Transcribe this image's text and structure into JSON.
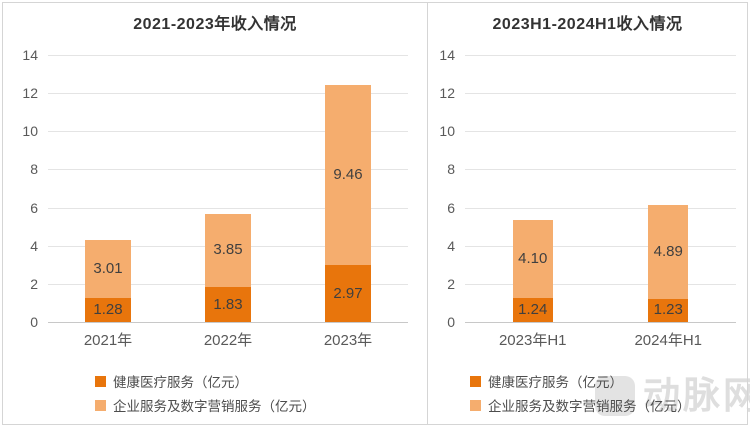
{
  "chart_data": [
    {
      "type": "bar",
      "stacked": true,
      "title": "2021-2023年收入情况",
      "categories": [
        "2021年",
        "2022年",
        "2023年"
      ],
      "series": [
        {
          "name": "健康医疗服务（亿元）",
          "color": "#E8750C",
          "values": [
            1.28,
            1.83,
            2.97
          ],
          "value_labels": [
            "1.28",
            "1.83",
            "2.97"
          ]
        },
        {
          "name": "企业服务及数字营销服务（亿元）",
          "color": "#F5AD6E",
          "values": [
            3.01,
            3.85,
            9.46
          ],
          "value_labels": [
            "3.01",
            "3.85",
            "9.46"
          ]
        }
      ],
      "ylim": [
        0,
        14
      ],
      "ytick_step": 2,
      "grid": true,
      "legend_position": "bottom-left"
    },
    {
      "type": "bar",
      "stacked": true,
      "title": "2023H1-2024H1收入情况",
      "categories": [
        "2023年H1",
        "2024年H1"
      ],
      "series": [
        {
          "name": "健康医疗服务（亿元）",
          "color": "#E8750C",
          "values": [
            1.24,
            1.23
          ],
          "value_labels": [
            "1.24",
            "1.23"
          ]
        },
        {
          "name": "企业服务及数字营销服务（亿元）",
          "color": "#F5AD6E",
          "values": [
            4.1,
            4.89
          ],
          "value_labels": [
            "4.10",
            "4.89"
          ]
        }
      ],
      "ylim": [
        0,
        14
      ],
      "ytick_step": 2,
      "grid": true,
      "legend_position": "bottom-left"
    }
  ],
  "watermark": {
    "text": "动脉网"
  }
}
